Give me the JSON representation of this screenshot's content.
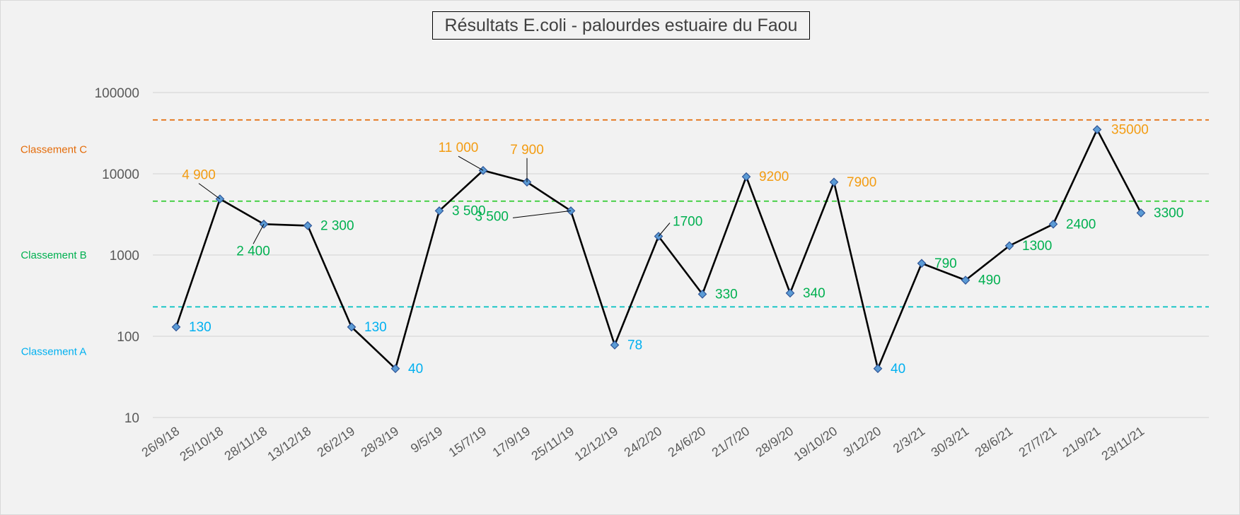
{
  "chart_data": {
    "type": "line",
    "title": "Résultats E.coli - palourdes estuaire du Faou",
    "xlabel": "",
    "ylabel": "",
    "y_scale": "log",
    "ylim": [
      10,
      100000
    ],
    "y_ticks": [
      "10",
      "100",
      "1000",
      "10000",
      "100000"
    ],
    "grid": true,
    "legend": "none",
    "categories": [
      "26/9/18",
      "25/10/18",
      "28/11/18",
      "13/12/18",
      "26/2/19",
      "28/3/19",
      "9/5/19",
      "15/7/19",
      "17/9/19",
      "25/11/19",
      "12/12/19",
      "24/2/20",
      "24/6/20",
      "21/7/20",
      "28/9/20",
      "19/10/20",
      "3/12/20",
      "2/3/21",
      "30/3/21",
      "28/6/21",
      "27/7/21",
      "21/9/21",
      "23/11/21"
    ],
    "series": [
      {
        "values": [
          130,
          4900,
          2400,
          2300,
          130,
          40,
          3500,
          11000,
          7900,
          3500,
          78,
          1700,
          330,
          9200,
          340,
          7900,
          40,
          790,
          490,
          1300,
          2400,
          35000,
          3300
        ],
        "data_labels": [
          "130",
          "4 900",
          "2 400",
          "2 300",
          "130",
          "40",
          "3 500",
          "11 000",
          "7 900",
          "3 500",
          "78",
          "1700",
          "330",
          "9200",
          "340",
          "7900",
          "40",
          "790",
          "490",
          "1300",
          "2400",
          "35000",
          "3300"
        ],
        "label_colors": [
          "#00b0f0",
          "#f39c12",
          "#00b050",
          "#00b050",
          "#00b0f0",
          "#00b0f0",
          "#00b050",
          "#f39c12",
          "#f39c12",
          "#00b050",
          "#00b0f0",
          "#00b050",
          "#00b050",
          "#f39c12",
          "#00b050",
          "#f39c12",
          "#00b0f0",
          "#00b050",
          "#00b050",
          "#00b050",
          "#00b050",
          "#f39c12",
          "#00b050"
        ]
      }
    ],
    "threshold_lines": [
      {
        "value": 46000,
        "color": "#e46c0a"
      },
      {
        "value": 4600,
        "color": "#33cc33"
      },
      {
        "value": 230,
        "color": "#00c0c0"
      }
    ],
    "bands": [
      {
        "label": "Classement C",
        "color": "#e46c0a",
        "y_value": 20000
      },
      {
        "label": "Classement B",
        "color": "#00b050",
        "y_value": 1000
      },
      {
        "label": "Classement A",
        "color": "#00b0f0",
        "y_value": 65
      }
    ],
    "colors": {
      "line": "#000000",
      "marker_fill": "#5b9bd5",
      "marker_stroke": "#2f5597",
      "grid": "#d9d9d9",
      "tick_label": "#595959"
    }
  }
}
